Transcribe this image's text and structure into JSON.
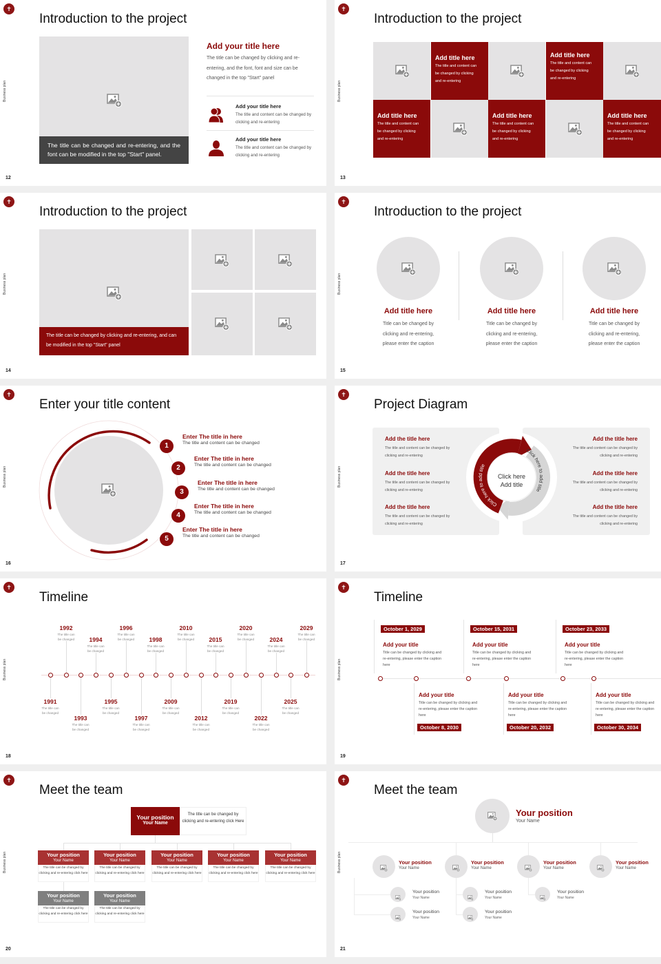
{
  "sidebar_label": "Business plan",
  "colors": {
    "accent": "#8b0a0a",
    "placeholder": "#e4e3e4",
    "caption_dark": "#444444",
    "member_header": "#a83232",
    "assistant_header": "#7f7f7f"
  },
  "slides": [
    {
      "number": "12",
      "title": "Introduction to the project",
      "caption": "The title can be changed and re-entering, and the font can be modified in the top \"Start\" panel.",
      "heading": "Add your title here",
      "paragraph": "The title can be changed by clicking and re-entering, and the font, font and size can be changed in the top \"Start\" panel",
      "items": [
        {
          "icon": "people-icon",
          "title": "Add your title here",
          "text": "The title and content can be changed by clicking and re-entering"
        },
        {
          "icon": "person-icon",
          "title": "Add your title here",
          "text": "The title and content can be changed by clicking and re-entering"
        }
      ]
    },
    {
      "number": "13",
      "title": "Introduction to the project",
      "tiles": [
        {
          "title": "Add title here",
          "text": "The title and content can be changed by clicking and re-entering"
        },
        {
          "title": "Add title here",
          "text": "The title and content can be changed by clicking and re-entering"
        },
        {
          "title": "Add title here",
          "text": "The title and content can be changed by clicking and re-entering"
        },
        {
          "title": "Add title here",
          "text": "The title and content can be changed by clicking and re-entering"
        },
        {
          "title": "Add title here",
          "text": "The title and content can be changed by clicking and re-entering"
        }
      ]
    },
    {
      "number": "14",
      "title": "Introduction to the project",
      "caption": "The title can be changed by clicking and re-entering, and can be modified in the top \"Start\" panel"
    },
    {
      "number": "15",
      "title": "Introduction to the project",
      "cards": [
        {
          "title": "Add title here",
          "text": "Title can be changed by clicking and re-entering, please enter the caption"
        },
        {
          "title": "Add title here",
          "text": "Title can be changed by clicking and re-entering, please enter the caption"
        },
        {
          "title": "Add title here",
          "text": "Title can be changed by clicking and re-entering, please enter the caption"
        }
      ]
    },
    {
      "number": "16",
      "title": "Enter your title content",
      "items": [
        {
          "num": "1",
          "title": "Enter The title in here",
          "text": "The title and content can be changed"
        },
        {
          "num": "2",
          "title": "Enter The title in here",
          "text": "The title and content can be changed"
        },
        {
          "num": "3",
          "title": "Enter The title in here",
          "text": "The title and content can be changed"
        },
        {
          "num": "4",
          "title": "Enter The title in here",
          "text": "The title and content can be changed"
        },
        {
          "num": "5",
          "title": "Enter The title in here",
          "text": "The title and content can be changed"
        }
      ]
    },
    {
      "number": "17",
      "title": "Project Diagram",
      "center_line1": "Click here",
      "center_line2": "Add title",
      "arrow_left": "Click here to add title",
      "arrow_right": "Click here to add title",
      "left_items": [
        {
          "title": "Add the title here",
          "text": "The title and content can be changed by clicking and re-entering"
        },
        {
          "title": "Add the title here",
          "text": "The title and content can be changed by clicking and re-entering"
        },
        {
          "title": "Add the title here",
          "text": "The title and content can be changed by clicking and re-entering"
        }
      ],
      "right_items": [
        {
          "title": "Add the title here",
          "text": "The title and content can be changed by clicking and re-entering"
        },
        {
          "title": "Add the title here",
          "text": "The title and content can be changed by clicking and re-entering"
        },
        {
          "title": "Add the title here",
          "text": "The title and content can be changed by clicking and re-entering"
        }
      ]
    },
    {
      "number": "18",
      "title": "Timeline",
      "events": [
        {
          "year": "1991",
          "text": "The title can be changed",
          "side": "below"
        },
        {
          "year": "1992",
          "text": "The title can be changed",
          "side": "above"
        },
        {
          "year": "1993",
          "text": "The title can be changed",
          "side": "below"
        },
        {
          "year": "1994",
          "text": "The title can be changed",
          "side": "above"
        },
        {
          "year": "1995",
          "text": "The title can be changed",
          "side": "below"
        },
        {
          "year": "1996",
          "text": "The title can be changed",
          "side": "above"
        },
        {
          "year": "1997",
          "text": "The title can be changed",
          "side": "below"
        },
        {
          "year": "1998",
          "text": "The title can be changed",
          "side": "above"
        },
        {
          "year": "2009",
          "text": "The title can be changed",
          "side": "below"
        },
        {
          "year": "2010",
          "text": "The title can be changed",
          "side": "above"
        },
        {
          "year": "2012",
          "text": "The title can be changed",
          "side": "below"
        },
        {
          "year": "2015",
          "text": "The title can be changed",
          "side": "above"
        },
        {
          "year": "2019",
          "text": "The title can be changed",
          "side": "below"
        },
        {
          "year": "2020",
          "text": "The title can be changed",
          "side": "above"
        },
        {
          "year": "2022",
          "text": "The title can be changed",
          "side": "below"
        },
        {
          "year": "2024",
          "text": "The title can be changed",
          "side": "above"
        },
        {
          "year": "2025",
          "text": "The title can be changed",
          "side": "below"
        },
        {
          "year": "2029",
          "text": "The title can be changed",
          "side": "above"
        }
      ]
    },
    {
      "number": "19",
      "title": "Timeline",
      "events": [
        {
          "date": "October 1, 2029",
          "title": "Add your title",
          "text": "Title can be changed by clicking and re-entering, please enter the caption here"
        },
        {
          "date": "October 8, 2030",
          "title": "Add your title",
          "text": "Title can be changed by clicking and re-entering, please enter the caption here"
        },
        {
          "date": "October 15, 2031",
          "title": "Add your title",
          "text": "Title can be changed by clicking and re-entering, please enter the caption here"
        },
        {
          "date": "October 20, 2032",
          "title": "Add your title",
          "text": "Title can be changed by clicking and re-entering, please enter the caption here"
        },
        {
          "date": "October 23, 2033",
          "title": "Add your title",
          "text": "Title can be changed by clicking and re-entering, please enter the caption here"
        },
        {
          "date": "October 30, 2034",
          "title": "Add your title",
          "text": "Title can be changed by clicking and re-entering, please enter the caption here"
        }
      ]
    },
    {
      "number": "20",
      "title": "Meet the team",
      "leader": {
        "position": "Your position",
        "name": "Your Name",
        "text": "The title can be changed by clicking and re-entering click Here"
      },
      "members": [
        {
          "position": "Your position",
          "name": "Your Name",
          "text": "The title can be changed by clicking and re-entering click here"
        },
        {
          "position": "Your position",
          "name": "Your Name",
          "text": "The title can be changed by clicking and re-entering click here"
        },
        {
          "position": "Your position",
          "name": "Your Name",
          "text": "The title can be changed by clicking and re-entering click here"
        },
        {
          "position": "Your position",
          "name": "Your Name",
          "text": "The title can be changed by clicking and re-entering click here"
        },
        {
          "position": "Your position",
          "name": "Your Name",
          "text": "The title can be changed by clicking and re-entering click here"
        }
      ],
      "assistants": [
        {
          "position": "Your position",
          "name": "Your Name",
          "text": "The title can be changed by clicking and re-entering click here"
        },
        {
          "position": "Your position",
          "name": "Your Name",
          "text": "The title can be changed by clicking and re-entering click here"
        }
      ]
    },
    {
      "number": "21",
      "title": "Meet the team",
      "leader": {
        "position": "Your position",
        "name": "Your Name"
      },
      "managers": [
        {
          "position": "Your position",
          "name": "Your Name"
        },
        {
          "position": "Your position",
          "name": "Your Name"
        },
        {
          "position": "Your position",
          "name": "Your Name"
        },
        {
          "position": "Your position",
          "name": "Your Name"
        }
      ],
      "staff": [
        [
          {
            "position": "Your position",
            "name": "Your Name"
          },
          {
            "position": "Your position",
            "name": "Your Name"
          }
        ],
        [
          {
            "position": "Your position",
            "name": "Your Name"
          },
          {
            "position": "Your position",
            "name": "Your Name"
          }
        ],
        [
          {
            "position": "Your position",
            "name": "Your Name"
          }
        ]
      ]
    }
  ]
}
